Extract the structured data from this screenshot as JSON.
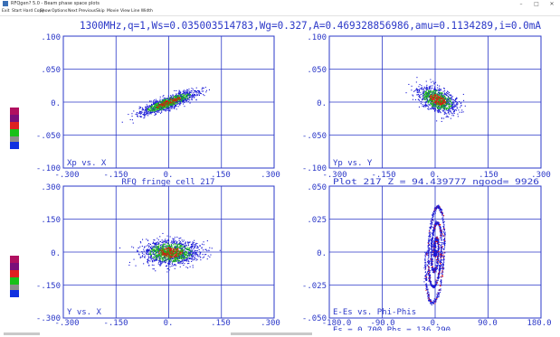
{
  "window": {
    "title": "RFQgen? 5.0  -  Beam phase space plots",
    "controls": [
      "–",
      "□",
      "✕"
    ]
  },
  "menu": [
    "Exit",
    "Start Hard Copy",
    "Show",
    "Options",
    "Next",
    "Previous",
    "Skip",
    "Movie",
    "View",
    "Line Width"
  ],
  "header": "1300MHz,q=1,Ws=0.035003514783,Wg=0.327,A=0.469328856986,amu=0.1134289,i=0.0mA",
  "colors": {
    "axis": "#2b38c8",
    "text": "#2b38c8",
    "blue_particles": "#1a1ad6",
    "red_particles": "#e01010",
    "green_particles": "#19b419",
    "legend": [
      "#b01060",
      "#7a0f7a",
      "#e02020",
      "#18c018",
      "#8c8c8c",
      "#1030e0"
    ]
  },
  "panels": [
    {
      "id": "xp-x",
      "label": "Xp vs. X",
      "footer": "RFQ fringe cell 217",
      "x_ticks": [
        "-.300",
        "-.150",
        "0.",
        ".150",
        ".300"
      ],
      "y_ticks": [
        ".100",
        ".050",
        "0.",
        "-.050",
        "-.100"
      ]
    },
    {
      "id": "yp-y",
      "label": "Yp vs. Y",
      "footer": "Plot 217    Z = 94.439777  ngood=    9926",
      "x_ticks": [
        "-.300",
        "-.150",
        "0.",
        ".150",
        ".300"
      ],
      "y_ticks": [
        ".100",
        ".050",
        "0.",
        "-.050",
        "-.100"
      ]
    },
    {
      "id": "y-x",
      "label": "Y vs. X",
      "footer": "",
      "x_ticks": [
        "-.300",
        "-.150",
        "0.",
        ".150",
        ".300"
      ],
      "y_ticks": [
        ".300",
        ".150",
        "0.",
        "-.150",
        "-.300"
      ]
    },
    {
      "id": "e-phi",
      "label": "E-Es vs. Phi-Phis",
      "footer": "Es =    0.700 Phs =  136.290",
      "x_ticks": [
        "-180.0",
        "-90.0",
        "0.",
        "90.0",
        "180.0"
      ],
      "y_ticks": [
        ".050",
        ".025",
        "0.",
        "-.025",
        "-.050"
      ]
    }
  ]
}
